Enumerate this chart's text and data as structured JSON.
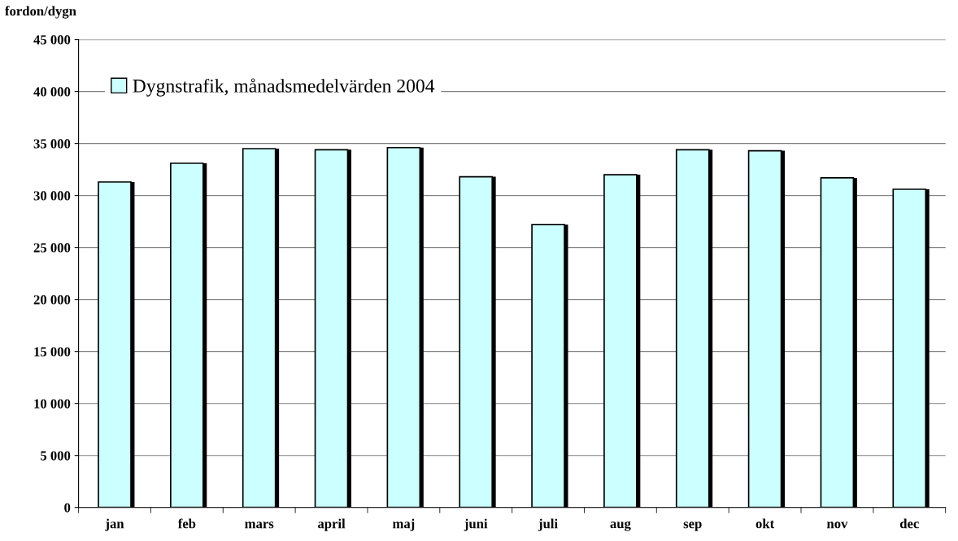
{
  "chart_data": {
    "type": "bar",
    "ylabel": "fordon/dygn",
    "categories": [
      "jan",
      "feb",
      "mars",
      "april",
      "maj",
      "juni",
      "juli",
      "aug",
      "sep",
      "okt",
      "nov",
      "dec"
    ],
    "series": [
      {
        "name": "Dygnstrafik, månadsmedelvärden 2004",
        "color": "#ccffff",
        "values": [
          31300,
          33100,
          34500,
          34400,
          34600,
          31800,
          27200,
          32000,
          34400,
          34300,
          31700,
          30600
        ]
      }
    ],
    "ylim": [
      0,
      45000
    ],
    "yticks": [
      {
        "value": 0,
        "label": "0"
      },
      {
        "value": 5000,
        "label": "5 000"
      },
      {
        "value": 10000,
        "label": "10 000"
      },
      {
        "value": 15000,
        "label": "15 000"
      },
      {
        "value": 20000,
        "label": "20 000"
      },
      {
        "value": 25000,
        "label": "25 000"
      },
      {
        "value": 30000,
        "label": "30 000"
      },
      {
        "value": 35000,
        "label": "35 000"
      },
      {
        "value": 40000,
        "label": "40 000"
      },
      {
        "value": 45000,
        "label": "45 000"
      }
    ],
    "grid": "y",
    "legend": "top left"
  }
}
